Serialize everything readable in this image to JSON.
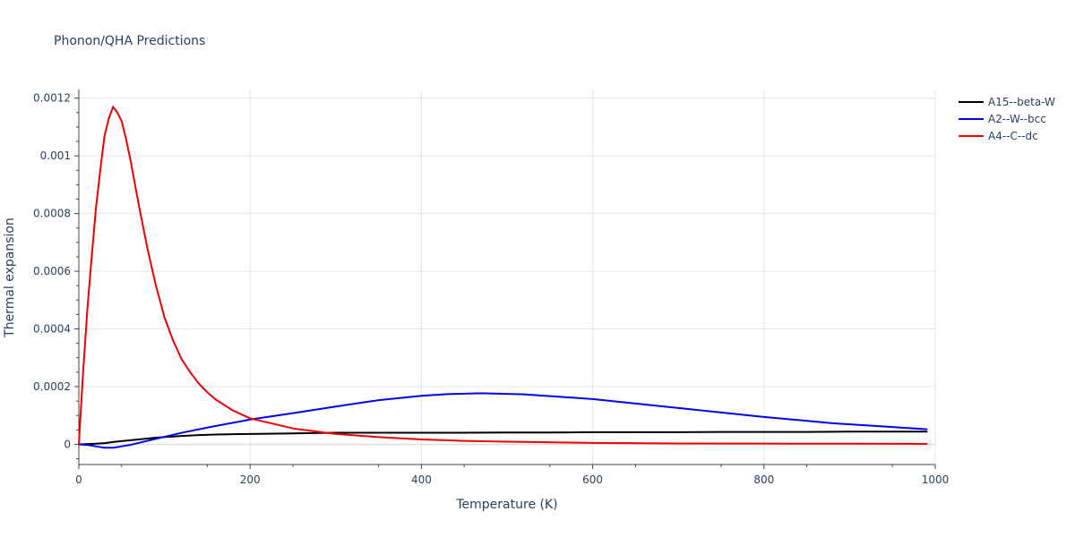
{
  "chart_data": {
    "type": "line",
    "title": "Phonon/QHA Predictions",
    "xlabel": "Temperature (K)",
    "ylabel": "Thermal expansion",
    "xlim": [
      0,
      1000
    ],
    "ylim": [
      -7e-05,
      0.00123
    ],
    "grid": true,
    "legend_position": "top-right",
    "x_ticks": [
      0,
      200,
      400,
      600,
      800,
      1000
    ],
    "x_tick_labels": [
      "0",
      "200",
      "400",
      "600",
      "800",
      "1000"
    ],
    "y_ticks": [
      0,
      0.0002,
      0.0004,
      0.0006,
      0.0008,
      0.001,
      0.0012
    ],
    "y_tick_labels": [
      "0",
      "0.0002",
      "0.0004",
      "0.0006",
      "0.0008",
      "0.001",
      "0.0012"
    ],
    "series": [
      {
        "name": "A15--beta-W",
        "color": "#000000",
        "x": [
          0,
          10,
          20,
          30,
          40,
          50,
          60,
          70,
          80,
          90,
          100,
          120,
          140,
          160,
          180,
          200,
          250,
          300,
          350,
          400,
          450,
          500,
          550,
          600,
          650,
          700,
          750,
          800,
          850,
          900,
          950,
          990
        ],
        "y": [
          0,
          1e-06,
          2e-06,
          4e-06,
          8e-06,
          1.1e-05,
          1.4e-05,
          1.7e-05,
          2e-05,
          2.3e-05,
          2.5e-05,
          2.9e-05,
          3.2e-05,
          3.4e-05,
          3.5e-05,
          3.6e-05,
          3.8e-05,
          4e-05,
          4e-05,
          4e-05,
          4e-05,
          4.1e-05,
          4.1e-05,
          4.2e-05,
          4.2e-05,
          4.2e-05,
          4.3e-05,
          4.3e-05,
          4.3e-05,
          4.4e-05,
          4.4e-05,
          4.4e-05
        ]
      },
      {
        "name": "A2--W--bcc",
        "color": "#0000ee",
        "x": [
          0,
          10,
          20,
          30,
          40,
          50,
          60,
          80,
          100,
          120,
          150,
          200,
          250,
          300,
          350,
          400,
          430,
          470,
          520,
          600,
          700,
          800,
          880,
          950,
          990
        ],
        "y": [
          0,
          -2e-06,
          -7e-06,
          -1.2e-05,
          -1.2e-05,
          -7e-06,
          -2e-06,
          1.2e-05,
          2.6e-05,
          4e-05,
          5.8e-05,
          8.6e-05,
          0.000108,
          0.000131,
          0.000153,
          0.000168,
          0.000174,
          0.000177,
          0.000173,
          0.000157,
          0.000126,
          9.5e-05,
          7.3e-05,
          6e-05,
          5.2e-05
        ]
      },
      {
        "name": "A4--C--dc",
        "color": "#ee0000",
        "x": [
          0,
          5,
          10,
          15,
          20,
          25,
          30,
          35,
          40,
          45,
          50,
          55,
          60,
          70,
          80,
          90,
          100,
          110,
          120,
          130,
          140,
          150,
          160,
          180,
          200,
          250,
          300,
          350,
          400,
          450,
          500,
          600,
          700,
          800,
          900,
          990
        ],
        "y": [
          0,
          0.00025,
          0.00047,
          0.00065,
          0.00082,
          0.00095,
          0.00107,
          0.00113,
          0.00117,
          0.00115,
          0.00112,
          0.00106,
          0.00099,
          0.00083,
          0.00068,
          0.00055,
          0.00044,
          0.00036,
          0.000295,
          0.00025,
          0.000211,
          0.00018,
          0.000155,
          0.000117,
          9e-05,
          5.5e-05,
          3.6e-05,
          2.5e-05,
          1.7e-05,
          1.2e-05,
          9e-06,
          5e-06,
          3e-06,
          2.5e-06,
          2e-06,
          1.5e-06
        ]
      }
    ]
  }
}
